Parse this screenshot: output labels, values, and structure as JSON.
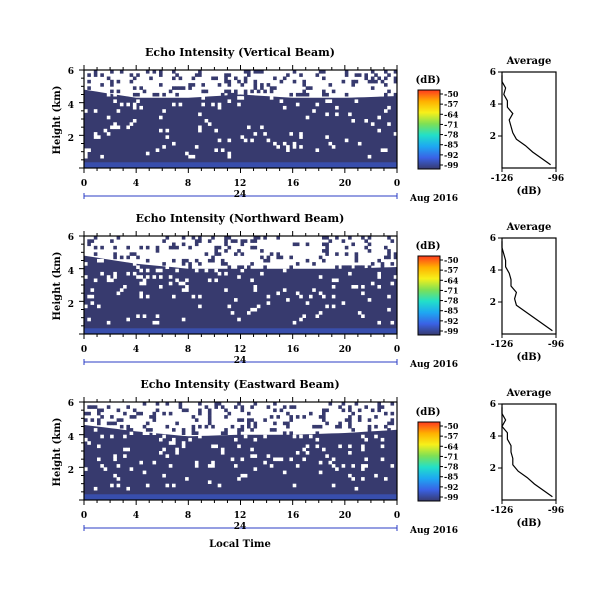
{
  "colors": {
    "background_dBZ_fill": "#373a6e",
    "near_surface_blue": "#3b5fe0",
    "no_echo": "#ffffff",
    "axis": "#000000",
    "time_scale_accent": "#2b3cc4"
  },
  "colorbar": {
    "unit": "(dB)",
    "ticks": [
      "-50",
      "-57",
      "-64",
      "-71",
      "-78",
      "-85",
      "-92",
      "-99"
    ],
    "stops": [
      "#ff3a1e",
      "#ffb000",
      "#f7f01a",
      "#7ee055",
      "#22e0c9",
      "#1ea8f2",
      "#3a62e6",
      "#373a6e"
    ]
  },
  "date_label": "Aug 2016",
  "xlabel_bottom": "Local Time",
  "shared": {
    "y_label": "Height (km)",
    "y_ticks": [
      "6",
      "4",
      "2"
    ],
    "x_ticks": [
      "0",
      "4",
      "8",
      "12",
      "16",
      "20",
      "0"
    ],
    "time_scale_mid": "24",
    "avg_title": "Average",
    "avg_xticks": [
      "-126",
      "-96"
    ],
    "avg_xlabel": "(dB)",
    "avg_yticks": [
      "6",
      "4",
      "2"
    ]
  },
  "chart_data": [
    {
      "type": "heatmap",
      "title": "Echo Intensity (Vertical Beam)",
      "xlabel": "",
      "ylabel": "Height (km)",
      "xlim": [
        0,
        24
      ],
      "ylim": [
        0,
        6
      ],
      "colorbar_range": [
        -99,
        -50
      ],
      "white_boundary_km": [
        [
          0,
          4.8
        ],
        [
          4,
          4.3
        ],
        [
          8,
          4.3
        ],
        [
          12,
          4.5
        ],
        [
          16,
          4.3
        ],
        [
          20,
          4.3
        ],
        [
          24,
          4.4
        ]
      ],
      "average_profile": {
        "title": "Average",
        "xlim": [
          -126,
          -96
        ],
        "ylim": [
          0,
          6
        ],
        "height_km": [
          0.2,
          0.6,
          1.0,
          1.4,
          1.8,
          2.2,
          2.6,
          3.0,
          3.4,
          3.8,
          4.2,
          4.6,
          5.0,
          5.4,
          5.8
        ],
        "db": [
          -99,
          -104,
          -109,
          -113,
          -118,
          -120,
          -121,
          -122,
          -120,
          -123,
          -123,
          -125,
          -124,
          -126,
          -126
        ]
      }
    },
    {
      "type": "heatmap",
      "title": "Echo Intensity (Northward Beam)",
      "xlabel": "",
      "ylabel": "Height (km)",
      "xlim": [
        0,
        24
      ],
      "ylim": [
        0,
        6
      ],
      "colorbar_range": [
        -99,
        -50
      ],
      "white_boundary_km": [
        [
          0,
          4.8
        ],
        [
          4,
          4.3
        ],
        [
          8,
          4.0
        ],
        [
          12,
          4.0
        ],
        [
          16,
          4.0
        ],
        [
          20,
          4.0
        ],
        [
          24,
          4.1
        ]
      ],
      "average_profile": {
        "title": "Average",
        "xlim": [
          -126,
          -96
        ],
        "ylim": [
          0,
          6
        ],
        "height_km": [
          0.2,
          0.6,
          1.0,
          1.4,
          1.8,
          2.2,
          2.6,
          3.0,
          3.4,
          3.8,
          4.2,
          4.6,
          5.0,
          5.4,
          5.8
        ],
        "db": [
          -98,
          -103,
          -108,
          -113,
          -118,
          -119,
          -118,
          -121,
          -121,
          -122,
          -124,
          -124,
          -125,
          -126,
          -126
        ]
      }
    },
    {
      "type": "heatmap",
      "title": "Echo Intensity (Eastward Beam)",
      "xlabel": "Local Time",
      "ylabel": "Height (km)",
      "xlim": [
        0,
        24
      ],
      "ylim": [
        0,
        6
      ],
      "colorbar_range": [
        -99,
        -50
      ],
      "white_boundary_km": [
        [
          0,
          4.6
        ],
        [
          4,
          4.2
        ],
        [
          8,
          3.9
        ],
        [
          12,
          4.0
        ],
        [
          16,
          4.0
        ],
        [
          20,
          4.1
        ],
        [
          24,
          4.3
        ]
      ],
      "average_profile": {
        "title": "Average",
        "xlim": [
          -126,
          -96
        ],
        "ylim": [
          0,
          6
        ],
        "height_km": [
          0.2,
          0.6,
          1.0,
          1.4,
          1.8,
          2.2,
          2.6,
          3.0,
          3.4,
          3.8,
          4.2,
          4.6,
          5.0,
          5.4,
          5.8
        ],
        "db": [
          -98,
          -103,
          -108,
          -112,
          -117,
          -120,
          -120,
          -121,
          -121,
          -123,
          -123,
          -126,
          -124,
          -126,
          -126
        ]
      }
    }
  ]
}
